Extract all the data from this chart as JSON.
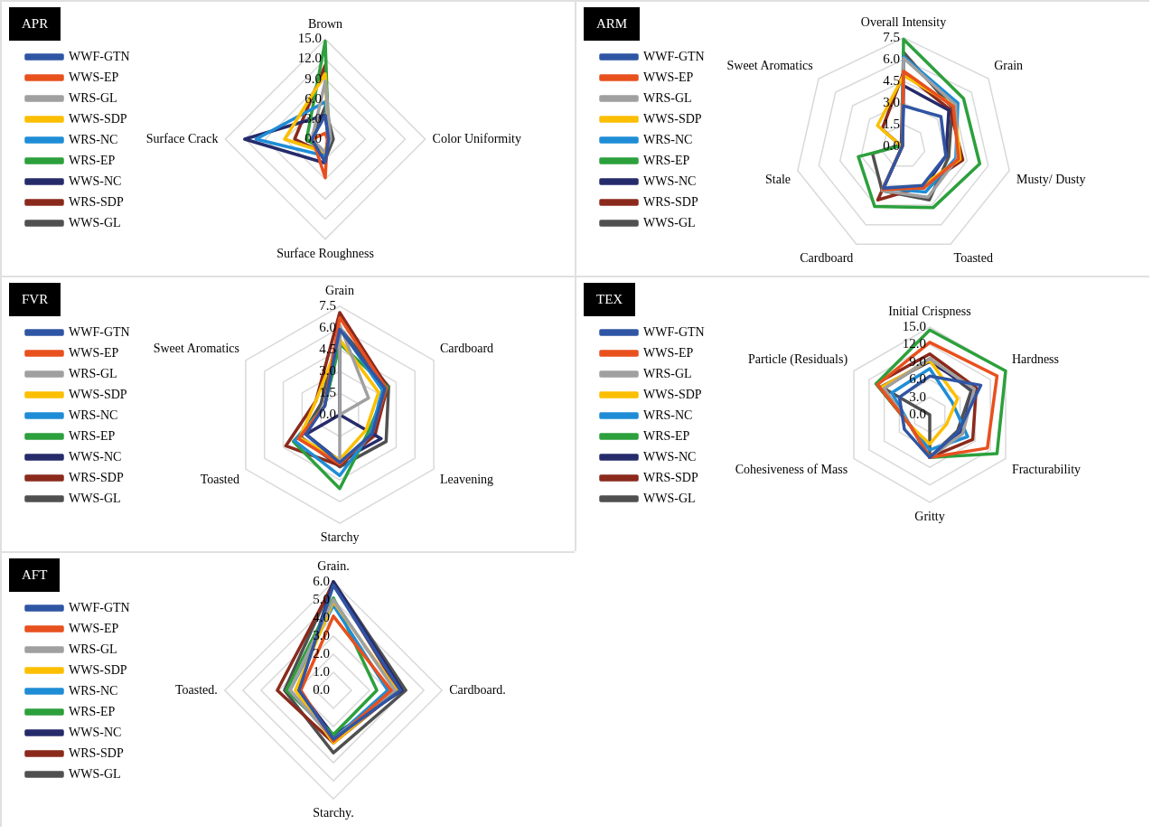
{
  "chart_data": [
    {
      "type": "radar",
      "title": "APR",
      "categories": [
        "Brown",
        "Color Uniformity",
        "Surface Roughness",
        "Surface Crack"
      ],
      "ylim": [
        0,
        15
      ],
      "yticks": [
        {
          "value": 0,
          "label": "0.0"
        },
        {
          "value": 3,
          "label": "3.0"
        },
        {
          "value": 6,
          "label": "6.0"
        },
        {
          "value": 9,
          "label": "9.0"
        },
        {
          "value": 12,
          "label": "12.0"
        },
        {
          "value": 15,
          "label": "15.0"
        }
      ],
      "grid": true,
      "legend": "left",
      "marker": "none",
      "series": [
        {
          "name": "WWF-GTN",
          "color": "#2f55a4",
          "values": [
            3.6,
            0.5,
            3.5,
            2.0
          ]
        },
        {
          "name": "WWS-EP",
          "color": "#e8501e",
          "values": [
            0.9,
            0.3,
            5.8,
            1.9
          ]
        },
        {
          "name": "WRS-GL",
          "color": "#a0a0a0",
          "values": [
            8.7,
            0.8,
            2.0,
            2.0
          ]
        },
        {
          "name": "WWS-SDP",
          "color": "#fbbf00",
          "values": [
            9.8,
            0.5,
            2.0,
            6.1
          ]
        },
        {
          "name": "WRS-NC",
          "color": "#1f8dd6",
          "values": [
            5.6,
            0.5,
            2.5,
            10.4
          ]
        },
        {
          "name": "WRS-EP",
          "color": "#2ca03c",
          "values": [
            14.7,
            0.5,
            2.0,
            2.8
          ]
        },
        {
          "name": "WWS-NC",
          "color": "#262b6b",
          "values": [
            3.6,
            0.5,
            3.6,
            12.1
          ]
        },
        {
          "name": "WRS-SDP",
          "color": "#8b2a1c",
          "values": [
            11.1,
            0.5,
            2.2,
            4.6
          ]
        },
        {
          "name": "WWS-GL",
          "color": "#505050",
          "values": [
            4.9,
            1.2,
            3.0,
            2.0
          ]
        }
      ]
    },
    {
      "type": "radar",
      "title": "ARM",
      "categories": [
        "Overall Intensity",
        "Grain",
        "Musty/ Dusty",
        "Toasted",
        "Cardboard",
        "Stale",
        "Sweet Aromatics"
      ],
      "ylim": [
        0,
        7.5
      ],
      "yticks": [
        {
          "value": 0,
          "label": "0.0"
        },
        {
          "value": 1.5,
          "label": "1.5"
        },
        {
          "value": 3,
          "label": "3.0"
        },
        {
          "value": 4.5,
          "label": "4.5"
        },
        {
          "value": 6,
          "label": "6.0"
        },
        {
          "value": 7.5,
          "label": "7.5"
        }
      ],
      "grid": true,
      "legend": "left",
      "marker": "none",
      "series": [
        {
          "name": "WWF-GTN",
          "color": "#2f55a4",
          "values": [
            2.8,
            3.3,
            3.0,
            3.0,
            3.2,
            0.1,
            0.1
          ]
        },
        {
          "name": "WWS-EP",
          "color": "#e8501e",
          "values": [
            5.2,
            4.4,
            3.9,
            3.2,
            3.3,
            0.1,
            0.1
          ]
        },
        {
          "name": "WRS-GL",
          "color": "#a0a0a0",
          "values": [
            6.1,
            4.6,
            3.8,
            3.9,
            3.4,
            0.1,
            0.1
          ]
        },
        {
          "name": "WWS-SDP",
          "color": "#fbbf00",
          "values": [
            4.9,
            4.5,
            4.0,
            3.0,
            3.3,
            0.1,
            2.3
          ]
        },
        {
          "name": "WRS-NC",
          "color": "#1f8dd6",
          "values": [
            6.2,
            4.8,
            3.7,
            3.5,
            3.2,
            0.1,
            0.1
          ]
        },
        {
          "name": "WRS-EP",
          "color": "#2ca03c",
          "values": [
            7.4,
            5.3,
            5.4,
            4.7,
            4.6,
            3.2,
            0.1
          ]
        },
        {
          "name": "WWS-NC",
          "color": "#262b6b",
          "values": [
            4.2,
            4.0,
            3.0,
            3.2,
            3.3,
            0.1,
            0.1
          ]
        },
        {
          "name": "WRS-SDP",
          "color": "#8b2a1c",
          "values": [
            5.1,
            4.1,
            4.2,
            3.1,
            4.1,
            0.1,
            1.9
          ]
        },
        {
          "name": "WWS-GL",
          "color": "#505050",
          "values": [
            6.5,
            4.3,
            3.2,
            4.1,
            3.4,
            2.2,
            0.2
          ]
        }
      ]
    },
    {
      "type": "radar",
      "title": "FVR",
      "categories": [
        "Grain",
        "Cardboard",
        "Leavening",
        "Starchy",
        "Toasted",
        "Sweet Aromatics"
      ],
      "ylim": [
        0,
        7.5
      ],
      "yticks": [
        {
          "value": 0,
          "label": "0.0"
        },
        {
          "value": 1.5,
          "label": "1.5"
        },
        {
          "value": 3,
          "label": "3.0"
        },
        {
          "value": 4.5,
          "label": "4.5"
        },
        {
          "value": 6,
          "label": "6.0"
        },
        {
          "value": 7.5,
          "label": "7.5"
        }
      ],
      "grid": true,
      "legend": "left",
      "marker": "none",
      "series": [
        {
          "name": "WWF-GTN",
          "color": "#2f55a4",
          "values": [
            5.9,
            3.6,
            2.6,
            3.3,
            2.7,
            1.2
          ]
        },
        {
          "name": "WWS-EP",
          "color": "#e8501e",
          "values": [
            6.7,
            3.7,
            2.6,
            3.4,
            3.3,
            1.2
          ]
        },
        {
          "name": "WRS-GL",
          "color": "#a0a0a0",
          "values": [
            6.2,
            2.3,
            0,
            3.0,
            0,
            0
          ]
        },
        {
          "name": "WWS-SDP",
          "color": "#fbbf00",
          "values": [
            5.2,
            3.1,
            2.1,
            3.1,
            3.2,
            1.9
          ]
        },
        {
          "name": "WRS-NC",
          "color": "#1f8dd6",
          "values": [
            6.0,
            3.4,
            2.5,
            4.2,
            3.6,
            1.2
          ]
        },
        {
          "name": "WRS-EP",
          "color": "#2ca03c",
          "values": [
            4.9,
            3.8,
            2.3,
            5.1,
            3.7,
            1.2
          ]
        },
        {
          "name": "WWS-NC",
          "color": "#262b6b",
          "values": [
            5.6,
            0,
            3.3,
            3.2,
            2.7,
            0
          ]
        },
        {
          "name": "WRS-SDP",
          "color": "#8b2a1c",
          "values": [
            7.05,
            3.8,
            2.8,
            3.5,
            4.3,
            1.9
          ]
        },
        {
          "name": "WWS-GL",
          "color": "#505050",
          "values": [
            6.0,
            3.9,
            3.7,
            3.6,
            3.1,
            1.5
          ]
        }
      ]
    },
    {
      "type": "radar",
      "title": "TEX",
      "categories": [
        "Initial Crispness",
        "Hardness",
        "Fracturability",
        "Gritty",
        "Cohesiveness of Mass",
        "Particle (Residuals)"
      ],
      "ylim": [
        0,
        15
      ],
      "yticks": [
        {
          "value": 0,
          "label": "0.0"
        },
        {
          "value": 3,
          "label": "3.0"
        },
        {
          "value": 6,
          "label": "6.0"
        },
        {
          "value": 9,
          "label": "9.0"
        },
        {
          "value": 12,
          "label": "12.0"
        },
        {
          "value": 15,
          "label": "15.0"
        }
      ],
      "grid": true,
      "legend": "left",
      "marker": "none",
      "series": [
        {
          "name": "WWF-GTN",
          "color": "#2f55a4",
          "values": [
            6.6,
            10.1,
            5.7,
            7.3,
            5.0,
            6.0
          ]
        },
        {
          "name": "WWS-EP",
          "color": "#e8501e",
          "values": [
            12.4,
            13.3,
            11.4,
            7.3,
            3.8,
            10.3
          ]
        },
        {
          "name": "WRS-GL",
          "color": "#a0a0a0",
          "values": [
            9.6,
            8.8,
            6.5,
            7.3,
            3.8,
            9.0
          ]
        },
        {
          "name": "WWS-SDP",
          "color": "#fbbf00",
          "values": [
            9.3,
            5.5,
            3.3,
            5.0,
            3.8,
            9.5
          ]
        },
        {
          "name": "WRS-NC",
          "color": "#1f8dd6",
          "values": [
            7.9,
            4.4,
            7.5,
            6.0,
            3.8,
            7.5
          ]
        },
        {
          "name": "WRS-EP",
          "color": "#2ca03c",
          "values": [
            14.5,
            15.0,
            13.3,
            7.3,
            3.8,
            10.6
          ]
        },
        {
          "name": "WWS-NC",
          "color": "#262b6b",
          "values": [
            9.1,
            8.7,
            6.2,
            7.3,
            3.8,
            9.6
          ]
        },
        {
          "name": "WRS-SDP",
          "color": "#8b2a1c",
          "values": [
            10.4,
            9.2,
            8.5,
            7.3,
            3.8,
            10.6
          ]
        },
        {
          "name": "WWS-GL",
          "color": "#505050",
          "values": [
            9.6,
            8.2,
            5.5,
            7.3,
            0,
            9.0
          ]
        }
      ]
    },
    {
      "type": "radar",
      "title": "AFT",
      "categories": [
        "Grain.",
        "Cardboard.",
        "Starchy.",
        "Toasted."
      ],
      "ylim": [
        0,
        6
      ],
      "yticks": [
        {
          "value": 0,
          "label": "0.0"
        },
        {
          "value": 1,
          "label": "1.0"
        },
        {
          "value": 2,
          "label": "2.0"
        },
        {
          "value": 3,
          "label": "3.0"
        },
        {
          "value": 4,
          "label": "4.0"
        },
        {
          "value": 5,
          "label": "5.0"
        },
        {
          "value": 6,
          "label": "6.0"
        }
      ],
      "grid": true,
      "legend": "left",
      "marker": "none",
      "series": [
        {
          "name": "WWF-GTN",
          "color": "#2f55a4",
          "values": [
            5.8,
            3.7,
            2.7,
            1.9
          ]
        },
        {
          "name": "WWS-EP",
          "color": "#e8501e",
          "values": [
            4.1,
            3.2,
            2.8,
            1.8
          ]
        },
        {
          "name": "WRS-GL",
          "color": "#a0a0a0",
          "values": [
            5.0,
            3.4,
            2.7,
            2.4
          ]
        },
        {
          "name": "WWS-SDP",
          "color": "#fbbf00",
          "values": [
            4.9,
            3.5,
            2.9,
            2.1
          ]
        },
        {
          "name": "WRS-NC",
          "color": "#1f8dd6",
          "values": [
            4.7,
            3.0,
            2.7,
            2.4
          ]
        },
        {
          "name": "WRS-EP",
          "color": "#2ca03c",
          "values": [
            5.1,
            2.4,
            2.45,
            2.6
          ]
        },
        {
          "name": "WWS-NC",
          "color": "#262b6b",
          "values": [
            6.0,
            3.8,
            2.5,
            1.9
          ]
        },
        {
          "name": "WRS-SDP",
          "color": "#8b2a1c",
          "values": [
            5.9,
            3.6,
            2.9,
            3.1
          ]
        },
        {
          "name": "WWS-GL",
          "color": "#505050",
          "values": [
            6.0,
            4.0,
            3.45,
            2.7
          ]
        }
      ]
    }
  ]
}
